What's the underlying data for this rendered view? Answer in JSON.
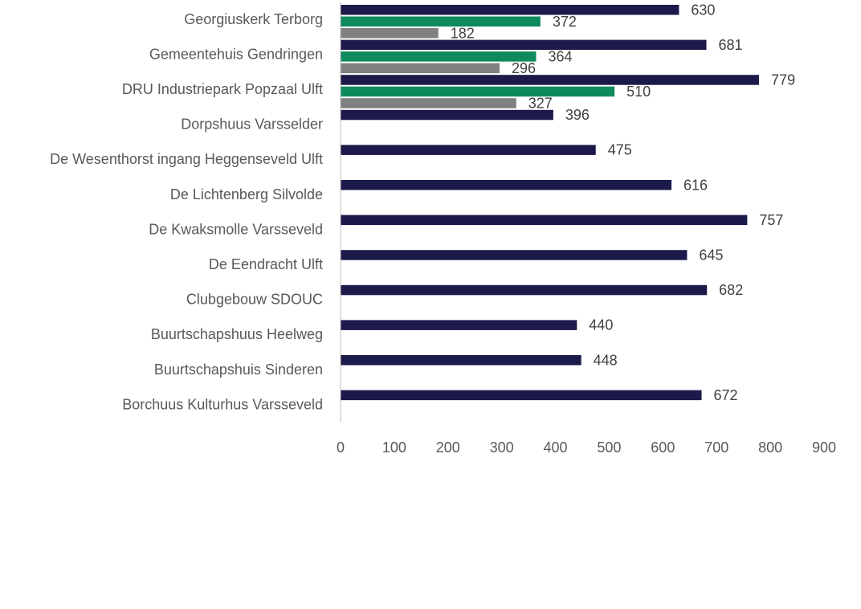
{
  "chart_data": {
    "type": "bar",
    "orientation": "horizontal",
    "categories": [
      "Georgiuskerk Terborg",
      "Gemeentehuis Gendringen",
      "DRU Industriepark Popzaal Ulft",
      "Dorpshuus Varsselder",
      "De Wesenthorst  ingang Heggenseveld Ulft",
      "De Lichtenberg Silvolde",
      "De Kwaksmolle Varsseveld",
      "De Eendracht Ulft",
      "Clubgebouw SDOUC",
      "Buurtschapshuus Heelweg",
      "Buurtschapshuis Sinderen",
      "Borchuus Kulturhus Varsseveld"
    ],
    "series": [
      {
        "color": "#1c1a4a",
        "values": [
          630,
          681,
          779,
          396,
          475,
          616,
          757,
          645,
          682,
          440,
          448,
          672
        ]
      },
      {
        "color": "#0e8a5c",
        "values": [
          372,
          364,
          510,
          null,
          null,
          null,
          null,
          null,
          null,
          null,
          null,
          null
        ]
      },
      {
        "color": "#808080",
        "values": [
          182,
          296,
          327,
          null,
          null,
          null,
          null,
          null,
          null,
          null,
          null,
          null
        ]
      }
    ],
    "xlim": [
      0,
      900
    ],
    "xticks": [
      0,
      100,
      200,
      300,
      400,
      500,
      600,
      700,
      800,
      900
    ],
    "grid": false,
    "legend": "none",
    "data_labels": true
  }
}
